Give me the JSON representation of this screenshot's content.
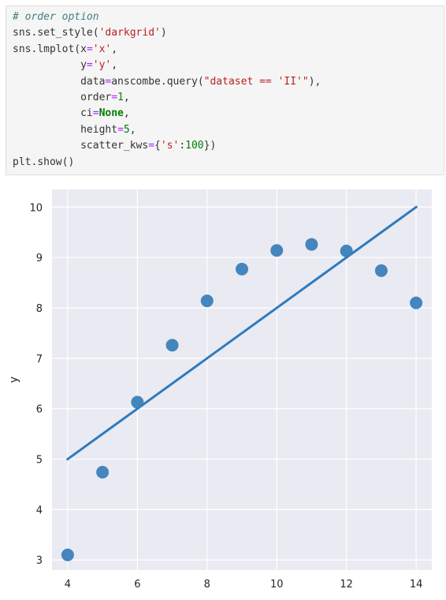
{
  "code_cell": {
    "lines": [
      [
        {
          "t": "# order option",
          "c": "comment"
        }
      ],
      [
        {
          "t": "sns",
          "c": "name"
        },
        {
          "t": ".",
          "c": "punc"
        },
        {
          "t": "set_style",
          "c": "name"
        },
        {
          "t": "(",
          "c": "punc"
        },
        {
          "t": "'darkgrid'",
          "c": "str"
        },
        {
          "t": ")",
          "c": "punc"
        }
      ],
      [
        {
          "t": "sns",
          "c": "name"
        },
        {
          "t": ".",
          "c": "punc"
        },
        {
          "t": "lmplot",
          "c": "name"
        },
        {
          "t": "(",
          "c": "punc"
        },
        {
          "t": "x",
          "c": "name"
        },
        {
          "t": "=",
          "c": "op"
        },
        {
          "t": "'x'",
          "c": "str"
        },
        {
          "t": ",",
          "c": "punc"
        }
      ],
      [
        {
          "t": "           ",
          "c": "name"
        },
        {
          "t": "y",
          "c": "name"
        },
        {
          "t": "=",
          "c": "op"
        },
        {
          "t": "'y'",
          "c": "str"
        },
        {
          "t": ",",
          "c": "punc"
        }
      ],
      [
        {
          "t": "           ",
          "c": "name"
        },
        {
          "t": "data",
          "c": "name"
        },
        {
          "t": "=",
          "c": "op"
        },
        {
          "t": "anscombe",
          "c": "name"
        },
        {
          "t": ".",
          "c": "punc"
        },
        {
          "t": "query",
          "c": "name"
        },
        {
          "t": "(",
          "c": "punc"
        },
        {
          "t": "\"dataset == 'II'\"",
          "c": "str"
        },
        {
          "t": "),",
          "c": "punc"
        }
      ],
      [
        {
          "t": "           ",
          "c": "name"
        },
        {
          "t": "order",
          "c": "name"
        },
        {
          "t": "=",
          "c": "op"
        },
        {
          "t": "1",
          "c": "num"
        },
        {
          "t": ",",
          "c": "punc"
        }
      ],
      [
        {
          "t": "           ",
          "c": "name"
        },
        {
          "t": "ci",
          "c": "name"
        },
        {
          "t": "=",
          "c": "op"
        },
        {
          "t": "None",
          "c": "kw"
        },
        {
          "t": ",",
          "c": "punc"
        }
      ],
      [
        {
          "t": "           ",
          "c": "name"
        },
        {
          "t": "height",
          "c": "name"
        },
        {
          "t": "=",
          "c": "op"
        },
        {
          "t": "5",
          "c": "num"
        },
        {
          "t": ",",
          "c": "punc"
        }
      ],
      [
        {
          "t": "           ",
          "c": "name"
        },
        {
          "t": "scatter_kws",
          "c": "name"
        },
        {
          "t": "=",
          "c": "op"
        },
        {
          "t": "{",
          "c": "punc"
        },
        {
          "t": "'s'",
          "c": "str"
        },
        {
          "t": ":",
          "c": "punc"
        },
        {
          "t": "100",
          "c": "num"
        },
        {
          "t": "})",
          "c": "punc"
        }
      ],
      [
        {
          "t": "plt",
          "c": "name"
        },
        {
          "t": ".",
          "c": "punc"
        },
        {
          "t": "show",
          "c": "name"
        },
        {
          "t": "()",
          "c": "punc"
        }
      ]
    ]
  },
  "chart_data": {
    "type": "scatter",
    "title": "",
    "xlabel": "",
    "ylabel": "y",
    "style": "darkgrid",
    "grid": true,
    "xlim": [
      3.55,
      14.45
    ],
    "ylim": [
      2.8,
      10.35
    ],
    "x_ticks": [
      4,
      6,
      8,
      10,
      12,
      14
    ],
    "y_ticks": [
      3,
      4,
      5,
      6,
      7,
      8,
      9,
      10
    ],
    "series": [
      {
        "kind": "scatter",
        "x": [
          4,
          5,
          6,
          7,
          8,
          9,
          10,
          11,
          12,
          13,
          14
        ],
        "y": [
          3.1,
          4.74,
          6.13,
          7.26,
          8.14,
          8.77,
          9.14,
          9.26,
          9.13,
          8.74,
          8.1
        ]
      },
      {
        "kind": "line",
        "x": [
          4,
          14
        ],
        "y": [
          5.0,
          10.0
        ]
      }
    ],
    "colors": {
      "background": "#eaeaf2",
      "grid": "#ffffff",
      "point": "#3b80bb",
      "line": "#2f7bbd",
      "tick_label": "#262626"
    }
  }
}
